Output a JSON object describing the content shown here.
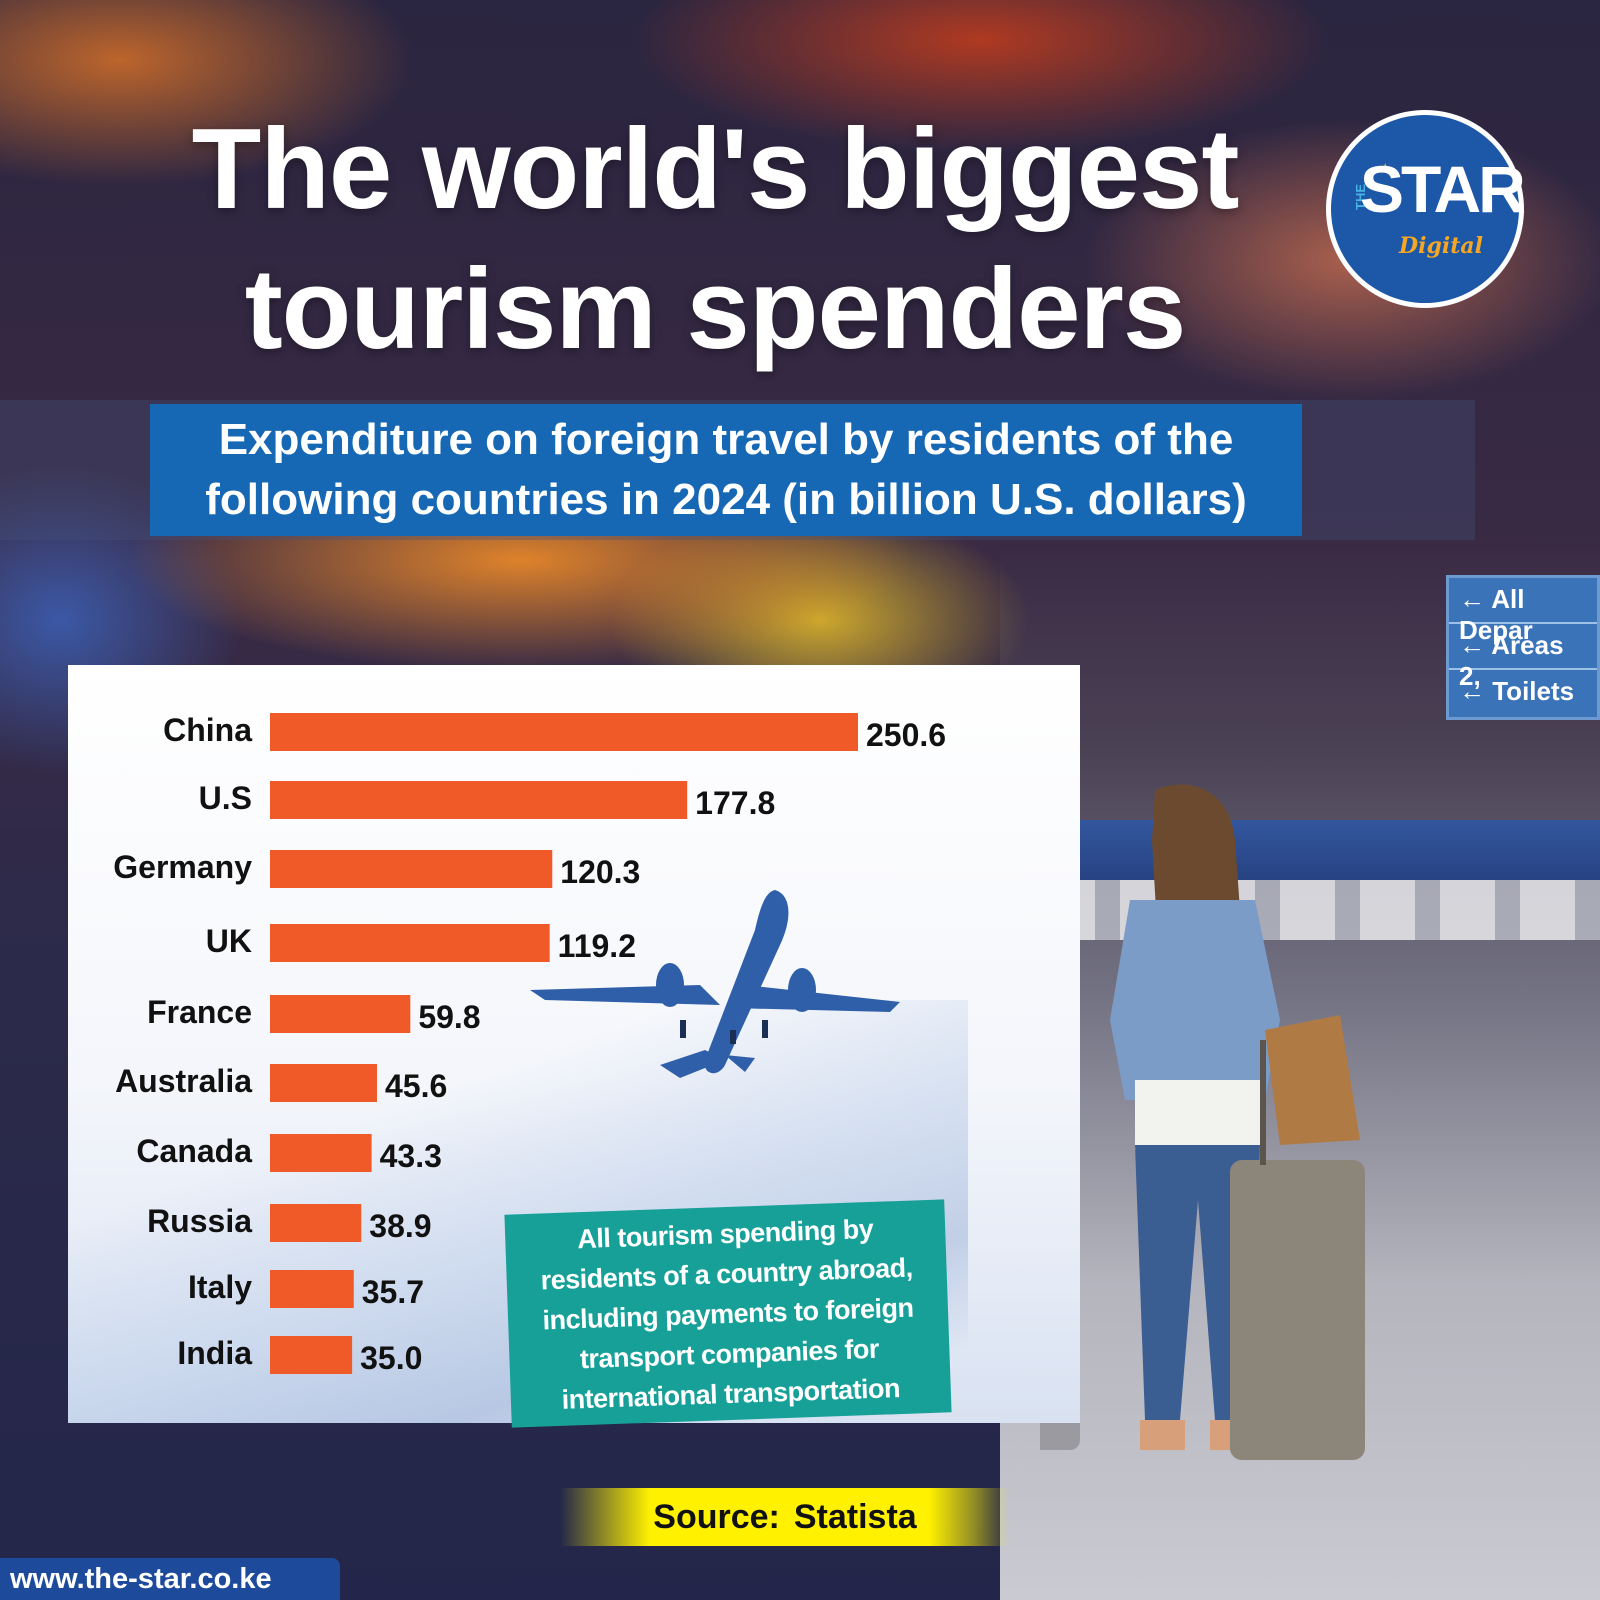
{
  "title": {
    "line1": "The world's biggest",
    "line2": "tourism spenders"
  },
  "logo": {
    "the": "THE",
    "name": "STAR",
    "sub": "Digital"
  },
  "subtitle": "Expenditure on foreign travel by residents of the following countries in 2024 (in billion U.S. dollars)",
  "note": "All tourism spending by residents of a country abroad, including payments to foreign transport companies for international transportation",
  "source": {
    "label": "Source:",
    "value": "Statista"
  },
  "website": "www.the-star.co.ke",
  "airport_sign": {
    "row1": "All Depar",
    "row2": "Areas 2,",
    "row3": "Toilets"
  },
  "colors": {
    "bar": "#f05a28",
    "subtitle_bg": "#1667b4",
    "note_bg": "#17a098",
    "source_bg": "#fff100",
    "logo_blue": "#1d57a7",
    "logo_orange": "#f5a623"
  },
  "chart_data": {
    "type": "bar",
    "orientation": "horizontal",
    "categories": [
      "China",
      "U.S",
      "Germany",
      "UK",
      "France",
      "Australia",
      "Canada",
      "Russia",
      "Italy",
      "India"
    ],
    "values": [
      250.6,
      177.8,
      120.3,
      119.2,
      59.8,
      45.6,
      43.3,
      38.9,
      35.7,
      35.0
    ],
    "value_labels": [
      "250.6",
      "177.8",
      "120.3",
      "119.2",
      "59.8",
      "45.6",
      "43.3",
      "38.9",
      "35.7",
      "35.0"
    ],
    "xlim": [
      0,
      250.6
    ],
    "grid": false,
    "legend": "none"
  }
}
